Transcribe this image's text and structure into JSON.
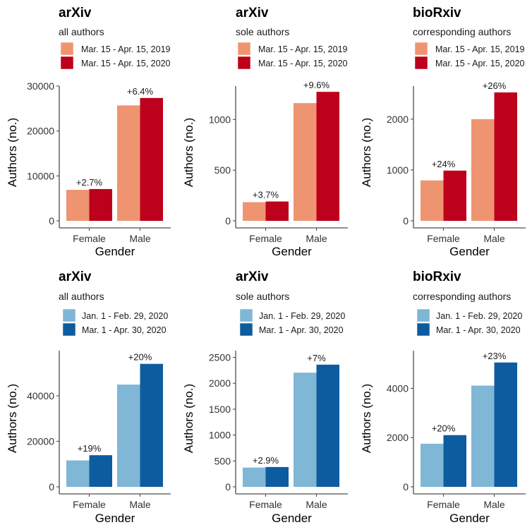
{
  "chart_data": [
    {
      "type": "bar",
      "title": "arXiv",
      "subtitle": "all authors",
      "xlabel": "Gender",
      "ylabel": "Authors (no.)",
      "categories": [
        "Female",
        "Male"
      ],
      "series": [
        {
          "name": "Mar. 15 - Apr. 15, 2019",
          "color": "#ef9470",
          "values": [
            6900,
            25700
          ]
        },
        {
          "name": "Mar. 15 - Apr. 15, 2020",
          "color": "#bd001b",
          "values": [
            7080,
            27350
          ]
        }
      ],
      "bar_labels": [
        "+2.7%",
        "+6.4%"
      ],
      "ylim": [
        0,
        30000
      ],
      "yticks": [
        0,
        10000,
        20000,
        30000
      ],
      "legend": "top-left",
      "grid": false
    },
    {
      "type": "bar",
      "title": "arXiv",
      "subtitle": "sole authors",
      "xlabel": "Gender",
      "ylabel": "Authors (no.)",
      "categories": [
        "Female",
        "Male"
      ],
      "series": [
        {
          "name": "Mar. 15 - Apr. 15, 2019",
          "color": "#ef9470",
          "values": [
            184,
            1162
          ]
        },
        {
          "name": "Mar. 15 - Apr. 15, 2020",
          "color": "#bd001b",
          "values": [
            191,
            1273
          ]
        }
      ],
      "bar_labels": [
        "+3.7%",
        "+9.6%"
      ],
      "ylim": [
        0,
        1330
      ],
      "yticks": [
        0,
        500,
        1000
      ],
      "legend": "top-left",
      "grid": false
    },
    {
      "type": "bar",
      "title": "bioRxiv",
      "subtitle": "corresponding authors",
      "xlabel": "Gender",
      "ylabel": "Authors (no.)",
      "categories": [
        "Female",
        "Male"
      ],
      "series": [
        {
          "name": "Mar. 15 - Apr. 15, 2019",
          "color": "#ef9470",
          "values": [
            795,
            2000
          ]
        },
        {
          "name": "Mar. 15 - Apr. 15, 2020",
          "color": "#bd001b",
          "values": [
            988,
            2525
          ]
        }
      ],
      "bar_labels": [
        "+24%",
        "+26%"
      ],
      "ylim": [
        0,
        2650
      ],
      "yticks": [
        0,
        1000,
        2000
      ],
      "legend": "top-left",
      "grid": false
    },
    {
      "type": "bar",
      "title": "arXiv",
      "subtitle": "all authors",
      "xlabel": "Gender",
      "ylabel": "Authors (no.)",
      "categories": [
        "Female",
        "Male"
      ],
      "series": [
        {
          "name": "Jan. 1 - Feb. 29, 2020",
          "color": "#80b6d6",
          "values": [
            11600,
            44900
          ]
        },
        {
          "name": "Mar. 1 - Apr. 30, 2020",
          "color": "#0d5ca0",
          "values": [
            13900,
            54000
          ]
        }
      ],
      "bar_labels": [
        "+19%",
        "+20%"
      ],
      "ylim": [
        0,
        59800
      ],
      "yticks": [
        0,
        20000,
        40000
      ],
      "legend": "top-left",
      "grid": false
    },
    {
      "type": "bar",
      "title": "arXiv",
      "subtitle": "sole authors",
      "xlabel": "Gender",
      "ylabel": "Authors (no.)",
      "categories": [
        "Female",
        "Male"
      ],
      "series": [
        {
          "name": "Jan. 1 - Feb. 29, 2020",
          "color": "#80b6d6",
          "values": [
            372,
            2205
          ]
        },
        {
          "name": "Mar. 1 - Apr. 30, 2020",
          "color": "#0d5ca0",
          "values": [
            383,
            2360
          ]
        }
      ],
      "bar_labels": [
        "+2.9%",
        "+7%"
      ],
      "ylim": [
        0,
        2630
      ],
      "yticks": [
        0,
        500,
        1000,
        1500,
        2000,
        2500
      ],
      "legend": "top-left",
      "grid": false
    },
    {
      "type": "bar",
      "title": "bioRxiv",
      "subtitle": "corresponding authors",
      "xlabel": "Gender",
      "ylabel": "Authors (no.)",
      "categories": [
        "Female",
        "Male"
      ],
      "series": [
        {
          "name": "Jan. 1 - Feb. 29, 2020",
          "color": "#80b6d6",
          "values": [
            1750,
            4110
          ]
        },
        {
          "name": "Mar. 1 - Apr. 30, 2020",
          "color": "#0d5ca0",
          "values": [
            2100,
            5050
          ]
        }
      ],
      "bar_labels": [
        "+20%",
        "+23%"
      ],
      "ylim": [
        0,
        5530
      ],
      "yticks": [
        0,
        2000,
        4000
      ],
      "legend": "top-left",
      "grid": false
    }
  ]
}
